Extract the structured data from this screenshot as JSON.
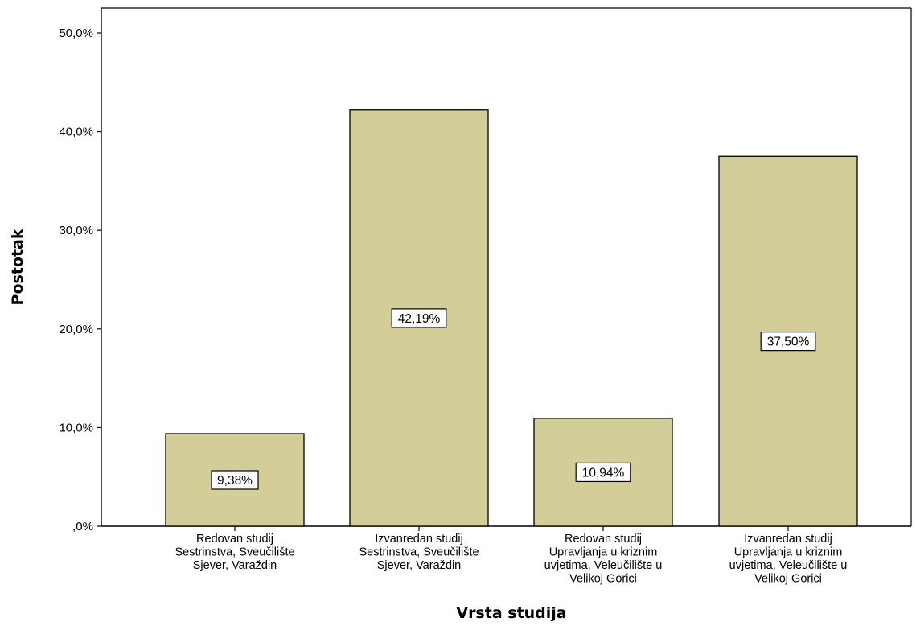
{
  "chart_data": {
    "type": "bar",
    "xlabel": "Vrsta studija",
    "ylabel": "Postotak",
    "ylim": [
      0,
      50
    ],
    "yticks": [
      {
        "value": 0,
        "label": ",0%"
      },
      {
        "value": 10,
        "label": "10,0%"
      },
      {
        "value": 20,
        "label": "20,0%"
      },
      {
        "value": 30,
        "label": "30,0%"
      },
      {
        "value": 40,
        "label": "40,0%"
      },
      {
        "value": 50,
        "label": "50,0%"
      }
    ],
    "categories": [
      [
        "Redovan studij",
        "Sestrinstva, Sveučilište",
        "Sjever, Varaždin"
      ],
      [
        "Izvanredan studij",
        "Sestrinstva, Sveučilište",
        "Sjever, Varaždin"
      ],
      [
        "Redovan studij",
        "Upravljanja  u kriznim",
        "uvjetima, Veleučilište u",
        "Velikoj Gorici"
      ],
      [
        "Izvanredan studij",
        "Upravljanja u kriznim",
        "uvjetima, Veleučilište u",
        "Velikoj Gorici"
      ]
    ],
    "values": [
      9.38,
      42.19,
      10.94,
      37.5
    ],
    "data_labels": [
      "9,38%",
      "42,19%",
      "10,94%",
      "37,50%"
    ],
    "bar_color": "#d3cd98",
    "grid": false,
    "legend": "none"
  }
}
